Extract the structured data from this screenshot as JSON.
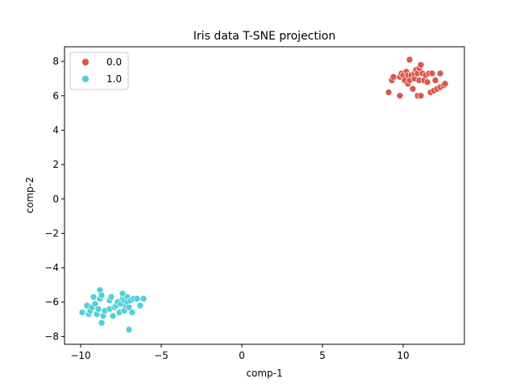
{
  "chart_data": {
    "type": "scatter",
    "title": "Iris data T-SNE projection",
    "xlabel": "comp-1",
    "ylabel": "comp-2",
    "xlim": [
      -11,
      13.8
    ],
    "ylim": [
      -8.45,
      8.85
    ],
    "xticks": [
      -10,
      -5,
      0,
      5,
      10
    ],
    "yticks": [
      -8,
      -6,
      -4,
      -2,
      0,
      2,
      4,
      6,
      8
    ],
    "grid": false,
    "legend": "top-left",
    "series": [
      {
        "name": "0.0",
        "color": "#d9584c",
        "points": [
          [
            9.1,
            6.2
          ],
          [
            9.3,
            6.9
          ],
          [
            9.4,
            7.1
          ],
          [
            9.8,
            6.0
          ],
          [
            9.8,
            7.1
          ],
          [
            9.9,
            7.3
          ],
          [
            10.0,
            7.2
          ],
          [
            10.1,
            6.9
          ],
          [
            10.2,
            7.4
          ],
          [
            10.3,
            7.2
          ],
          [
            10.3,
            6.7
          ],
          [
            10.4,
            8.1
          ],
          [
            10.4,
            6.9
          ],
          [
            10.5,
            7.2
          ],
          [
            10.6,
            6.4
          ],
          [
            10.7,
            7.0
          ],
          [
            10.7,
            7.3
          ],
          [
            10.8,
            7.5
          ],
          [
            10.9,
            7.3
          ],
          [
            10.9,
            6.0
          ],
          [
            11.0,
            6.9
          ],
          [
            11.0,
            7.6
          ],
          [
            11.1,
            7.8
          ],
          [
            11.1,
            6.0
          ],
          [
            11.2,
            7.3
          ],
          [
            11.3,
            6.9
          ],
          [
            11.4,
            7.2
          ],
          [
            11.5,
            6.8
          ],
          [
            11.6,
            7.3
          ],
          [
            11.7,
            6.2
          ],
          [
            11.8,
            7.3
          ],
          [
            11.9,
            6.3
          ],
          [
            12.0,
            6.9
          ],
          [
            12.1,
            6.4
          ],
          [
            12.3,
            7.3
          ],
          [
            12.3,
            6.5
          ],
          [
            12.5,
            6.6
          ],
          [
            12.6,
            6.7
          ]
        ]
      },
      {
        "name": "1.0",
        "color": "#52cfd8",
        "points": [
          [
            -9.9,
            -6.6
          ],
          [
            -9.6,
            -6.2
          ],
          [
            -9.5,
            -6.7
          ],
          [
            -9.4,
            -6.5
          ],
          [
            -9.3,
            -6.3
          ],
          [
            -9.2,
            -5.7
          ],
          [
            -9.1,
            -6.1
          ],
          [
            -9.0,
            -6.7
          ],
          [
            -8.9,
            -6.4
          ],
          [
            -8.8,
            -5.8
          ],
          [
            -8.8,
            -5.3
          ],
          [
            -8.7,
            -5.6
          ],
          [
            -8.7,
            -7.2
          ],
          [
            -8.6,
            -6.8
          ],
          [
            -8.5,
            -6.5
          ],
          [
            -8.2,
            -6.4
          ],
          [
            -8.2,
            -5.9
          ],
          [
            -8.1,
            -5.7
          ],
          [
            -8.0,
            -6.8
          ],
          [
            -7.9,
            -6.3
          ],
          [
            -7.8,
            -6.2
          ],
          [
            -7.7,
            -6.0
          ],
          [
            -7.6,
            -6.6
          ],
          [
            -7.5,
            -6.1
          ],
          [
            -7.4,
            -5.8
          ],
          [
            -7.4,
            -5.5
          ],
          [
            -7.3,
            -6.5
          ],
          [
            -7.3,
            -5.9
          ],
          [
            -7.2,
            -6.2
          ],
          [
            -7.1,
            -5.7
          ],
          [
            -7.1,
            -6.0
          ],
          [
            -7.0,
            -7.6
          ],
          [
            -7.0,
            -6.3
          ],
          [
            -6.9,
            -5.9
          ],
          [
            -6.8,
            -6.6
          ],
          [
            -6.7,
            -5.8
          ],
          [
            -6.5,
            -5.8
          ],
          [
            -6.3,
            -6.2
          ],
          [
            -6.1,
            -5.8
          ]
        ]
      }
    ]
  }
}
